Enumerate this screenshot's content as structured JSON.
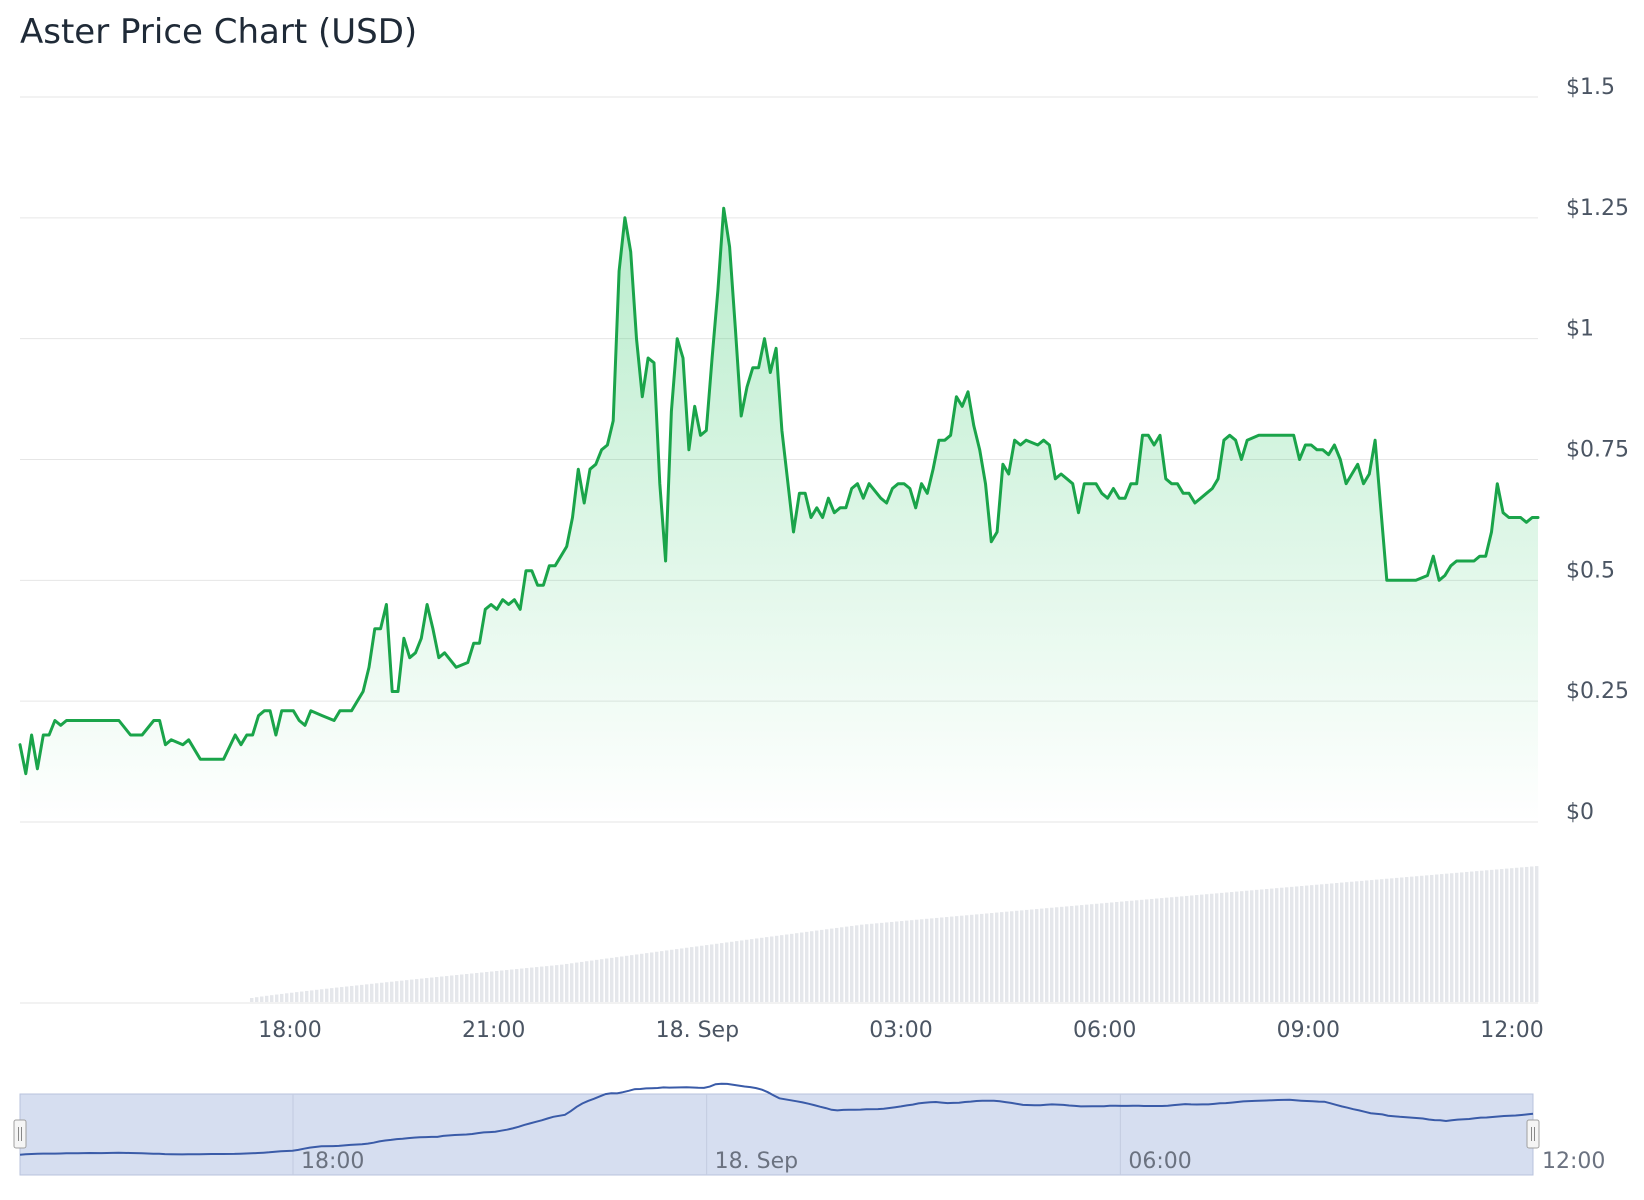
{
  "chart_data": {
    "type": "area",
    "title": "Aster Price Chart (USD)",
    "xlabel": "",
    "ylabel": "",
    "ylim": [
      0,
      1.5
    ],
    "y_ticks": [
      "$0",
      "$0.25",
      "$0.5",
      "$0.75",
      "$1",
      "$1.25",
      "$1.5"
    ],
    "y_tick_values": [
      0,
      0.25,
      0.5,
      0.75,
      1,
      1.25,
      1.5
    ],
    "x_range_hours": [
      -4,
      15.5
    ],
    "x_ticks": [
      {
        "label": "18:00",
        "hour": 18
      },
      {
        "label": "21:00",
        "hour": 21
      },
      {
        "label": "18. Sep",
        "hour": 24
      },
      {
        "label": "03:00",
        "hour": 27
      },
      {
        "label": "06:00",
        "hour": 30
      },
      {
        "label": "09:00",
        "hour": 33
      },
      {
        "label": "12:00",
        "hour": 36
      }
    ],
    "navigator_ticks": [
      {
        "label": "18:00",
        "hour": 18
      },
      {
        "label": "18. Sep",
        "hour": 24
      },
      {
        "label": "06:00",
        "hour": 30
      },
      {
        "label": "12:00",
        "hour": 36
      }
    ],
    "grid": true,
    "line_color": "#1aa44a",
    "fill_color": "#22c55e",
    "volume_color": "#e5e7eb",
    "navigator_color": "#3a5ba8",
    "series": [
      {
        "values": [
          [
            14.0,
            0.16
          ],
          [
            14.1,
            0.1
          ],
          [
            14.2,
            0.18
          ],
          [
            14.3,
            0.11
          ],
          [
            14.4,
            0.18
          ],
          [
            14.5,
            0.18
          ],
          [
            14.6,
            0.21
          ],
          [
            14.7,
            0.2
          ],
          [
            14.8,
            0.21
          ],
          [
            15.0,
            0.21
          ],
          [
            15.2,
            0.21
          ],
          [
            15.4,
            0.21
          ],
          [
            15.7,
            0.21
          ],
          [
            15.9,
            0.18
          ],
          [
            16.1,
            0.18
          ],
          [
            16.3,
            0.21
          ],
          [
            16.4,
            0.21
          ],
          [
            16.5,
            0.16
          ],
          [
            16.6,
            0.17
          ],
          [
            16.8,
            0.16
          ],
          [
            16.9,
            0.17
          ],
          [
            17.1,
            0.13
          ],
          [
            17.3,
            0.13
          ],
          [
            17.5,
            0.13
          ],
          [
            17.7,
            0.18
          ],
          [
            17.8,
            0.16
          ],
          [
            17.9,
            0.18
          ],
          [
            18.0,
            0.18
          ],
          [
            18.1,
            0.22
          ],
          [
            18.2,
            0.23
          ],
          [
            18.3,
            0.23
          ],
          [
            18.4,
            0.18
          ],
          [
            18.5,
            0.23
          ],
          [
            18.7,
            0.23
          ],
          [
            18.8,
            0.21
          ],
          [
            18.9,
            0.2
          ],
          [
            19.0,
            0.23
          ],
          [
            19.2,
            0.22
          ],
          [
            19.4,
            0.21
          ],
          [
            19.5,
            0.23
          ],
          [
            19.7,
            0.23
          ],
          [
            19.9,
            0.27
          ],
          [
            20.0,
            0.32
          ],
          [
            20.1,
            0.4
          ],
          [
            20.2,
            0.4
          ],
          [
            20.3,
            0.45
          ],
          [
            20.4,
            0.27
          ],
          [
            20.5,
            0.27
          ],
          [
            20.6,
            0.38
          ],
          [
            20.7,
            0.34
          ],
          [
            20.8,
            0.35
          ],
          [
            20.9,
            0.38
          ],
          [
            21.0,
            0.45
          ],
          [
            21.1,
            0.4
          ],
          [
            21.2,
            0.34
          ],
          [
            21.3,
            0.35
          ],
          [
            21.5,
            0.32
          ],
          [
            21.7,
            0.33
          ],
          [
            21.8,
            0.37
          ],
          [
            21.9,
            0.37
          ],
          [
            22.0,
            0.44
          ],
          [
            22.1,
            0.45
          ],
          [
            22.2,
            0.44
          ],
          [
            22.3,
            0.46
          ],
          [
            22.4,
            0.45
          ],
          [
            22.5,
            0.46
          ],
          [
            22.6,
            0.44
          ],
          [
            22.7,
            0.52
          ],
          [
            22.8,
            0.52
          ],
          [
            22.9,
            0.49
          ],
          [
            23.0,
            0.49
          ],
          [
            23.1,
            0.53
          ],
          [
            23.2,
            0.53
          ],
          [
            23.4,
            0.57
          ],
          [
            23.5,
            0.63
          ],
          [
            23.6,
            0.73
          ],
          [
            23.7,
            0.66
          ],
          [
            23.8,
            0.73
          ],
          [
            23.9,
            0.74
          ],
          [
            24.0,
            0.77
          ],
          [
            24.1,
            0.78
          ],
          [
            24.2,
            0.83
          ],
          [
            24.3,
            1.14
          ],
          [
            24.4,
            1.25
          ],
          [
            24.5,
            1.18
          ],
          [
            24.6,
            1.0
          ],
          [
            24.7,
            0.88
          ],
          [
            24.8,
            0.96
          ],
          [
            24.9,
            0.95
          ],
          [
            25.0,
            0.7
          ],
          [
            25.1,
            0.54
          ],
          [
            25.2,
            0.85
          ],
          [
            25.3,
            1.0
          ],
          [
            25.4,
            0.96
          ],
          [
            25.5,
            0.77
          ],
          [
            25.6,
            0.86
          ],
          [
            25.7,
            0.8
          ],
          [
            25.8,
            0.81
          ],
          [
            25.9,
            0.96
          ],
          [
            26.0,
            1.1
          ],
          [
            26.1,
            1.27
          ],
          [
            26.2,
            1.19
          ],
          [
            26.3,
            1.02
          ],
          [
            26.4,
            0.84
          ],
          [
            26.5,
            0.9
          ],
          [
            26.6,
            0.94
          ],
          [
            26.7,
            0.94
          ],
          [
            26.8,
            1.0
          ],
          [
            26.9,
            0.93
          ],
          [
            27.0,
            0.98
          ],
          [
            27.1,
            0.81
          ],
          [
            27.3,
            0.6
          ],
          [
            27.4,
            0.68
          ],
          [
            27.5,
            0.68
          ],
          [
            27.6,
            0.63
          ],
          [
            27.7,
            0.65
          ],
          [
            27.8,
            0.63
          ],
          [
            27.9,
            0.67
          ],
          [
            28.0,
            0.64
          ],
          [
            28.1,
            0.65
          ],
          [
            28.2,
            0.65
          ],
          [
            28.3,
            0.69
          ],
          [
            28.4,
            0.7
          ],
          [
            28.5,
            0.67
          ],
          [
            28.6,
            0.7
          ],
          [
            28.8,
            0.67
          ],
          [
            28.9,
            0.66
          ],
          [
            29.0,
            0.69
          ],
          [
            29.1,
            0.7
          ],
          [
            29.2,
            0.7
          ],
          [
            29.3,
            0.69
          ],
          [
            29.4,
            0.65
          ],
          [
            29.5,
            0.7
          ],
          [
            29.6,
            0.68
          ],
          [
            29.7,
            0.73
          ],
          [
            29.8,
            0.79
          ],
          [
            29.9,
            0.79
          ],
          [
            30.0,
            0.8
          ],
          [
            30.1,
            0.88
          ],
          [
            30.2,
            0.86
          ],
          [
            30.3,
            0.89
          ],
          [
            30.4,
            0.82
          ],
          [
            30.5,
            0.77
          ],
          [
            30.6,
            0.7
          ],
          [
            30.7,
            0.58
          ],
          [
            30.8,
            0.6
          ],
          [
            30.9,
            0.74
          ],
          [
            31.0,
            0.72
          ],
          [
            31.1,
            0.79
          ],
          [
            31.2,
            0.78
          ],
          [
            31.3,
            0.79
          ],
          [
            31.5,
            0.78
          ],
          [
            31.6,
            0.79
          ],
          [
            31.7,
            0.78
          ],
          [
            31.8,
            0.71
          ],
          [
            31.9,
            0.72
          ],
          [
            32.0,
            0.71
          ],
          [
            32.1,
            0.7
          ],
          [
            32.2,
            0.64
          ],
          [
            32.3,
            0.7
          ],
          [
            32.5,
            0.7
          ],
          [
            32.6,
            0.68
          ],
          [
            32.7,
            0.67
          ],
          [
            32.8,
            0.69
          ],
          [
            32.9,
            0.67
          ],
          [
            33.0,
            0.67
          ],
          [
            33.1,
            0.7
          ],
          [
            33.2,
            0.7
          ],
          [
            33.3,
            0.8
          ],
          [
            33.4,
            0.8
          ],
          [
            33.5,
            0.78
          ],
          [
            33.6,
            0.8
          ],
          [
            33.7,
            0.71
          ],
          [
            33.8,
            0.7
          ],
          [
            33.9,
            0.7
          ],
          [
            34.0,
            0.68
          ],
          [
            34.1,
            0.68
          ],
          [
            34.2,
            0.66
          ],
          [
            34.3,
            0.67
          ],
          [
            34.4,
            0.68
          ],
          [
            34.5,
            0.69
          ],
          [
            34.6,
            0.71
          ],
          [
            34.7,
            0.79
          ],
          [
            34.8,
            0.8
          ],
          [
            34.9,
            0.79
          ],
          [
            35.0,
            0.75
          ],
          [
            35.1,
            0.79
          ],
          [
            35.3,
            0.8
          ],
          [
            35.5,
            0.8
          ],
          [
            35.7,
            0.8
          ],
          [
            35.9,
            0.8
          ],
          [
            36.0,
            0.75
          ],
          [
            36.1,
            0.78
          ],
          [
            36.2,
            0.78
          ],
          [
            36.3,
            0.77
          ],
          [
            36.4,
            0.77
          ],
          [
            36.5,
            0.76
          ],
          [
            36.6,
            0.78
          ],
          [
            36.7,
            0.75
          ],
          [
            36.8,
            0.7
          ],
          [
            36.9,
            0.72
          ],
          [
            37.0,
            0.74
          ],
          [
            37.1,
            0.7
          ],
          [
            37.2,
            0.72
          ],
          [
            37.3,
            0.79
          ],
          [
            37.5,
            0.5
          ],
          [
            37.6,
            0.5
          ],
          [
            37.8,
            0.5
          ],
          [
            38.0,
            0.5
          ],
          [
            38.2,
            0.51
          ],
          [
            38.3,
            0.55
          ],
          [
            38.4,
            0.5
          ],
          [
            38.5,
            0.51
          ],
          [
            38.6,
            0.53
          ],
          [
            38.7,
            0.54
          ],
          [
            38.8,
            0.54
          ],
          [
            39.0,
            0.54
          ],
          [
            39.1,
            0.55
          ],
          [
            39.2,
            0.55
          ],
          [
            39.3,
            0.6
          ],
          [
            39.4,
            0.7
          ],
          [
            39.5,
            0.64
          ],
          [
            39.6,
            0.63
          ],
          [
            39.8,
            0.63
          ],
          [
            39.9,
            0.62
          ],
          [
            40.0,
            0.63
          ],
          [
            40.1,
            0.63
          ]
        ]
      }
    ]
  }
}
